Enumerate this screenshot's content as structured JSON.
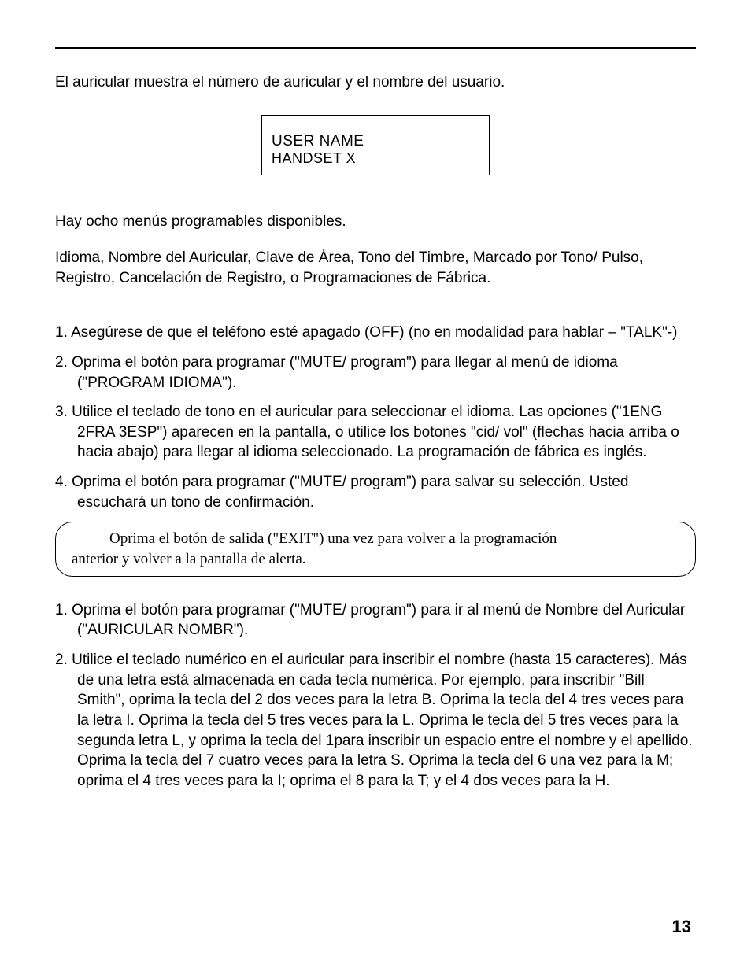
{
  "intro": "El auricular muestra el número de auricular y el nombre del usuario.",
  "display": {
    "line1": "USER NAME",
    "line2": "HANDSET  X"
  },
  "menu_intro": "Hay ocho menús programables disponibles.",
  "menu_list": "Idioma, Nombre del Auricular, Clave de Área, Tono del Timbre, Marcado por Tono/ Pulso, Registro, Cancelación de Registro, o Programaciones de Fábrica.",
  "steps1": [
    "1.   Asegúrese de que el teléfono esté apagado (OFF) (no en modalidad para hablar – \"TALK\"-)",
    "2. Oprima el botón para programar (\"MUTE/ program\") para llegar al menú de idioma (\"PROGRAM IDIOMA\").",
    "3.   Utilice el teclado de tono en el auricular para seleccionar el idioma. Las opciones (\"1ENG 2FRA 3ESP\") aparecen en la pantalla, o utilice los botones \"cid/ vol\" (flechas hacia arriba o hacia abajo) para llegar al idioma seleccionado. La programación de fábrica es inglés.",
    "4.   Oprima el botón para programar (\"MUTE/ program\") para salvar su selección. Usted escuchará un tono de confirmación."
  ],
  "note": {
    "first": "Oprima el botón de salida (\"EXIT\") una vez para volver a la programación",
    "second": "anterior y volver a la pantalla de alerta."
  },
  "steps2": [
    "1.   Oprima el botón para programar (\"MUTE/ program\") para ir al menú de Nombre del Auricular (\"AURICULAR NOMBR\").",
    "2.   Utilice el teclado numérico en el auricular para inscribir el nombre (hasta 15 caracteres). Más de una letra está almacenada en cada tecla numérica. Por ejemplo, para inscribir \"Bill Smith\", oprima la tecla del 2 dos veces para la letra B. Oprima la tecla del 4 tres veces para la letra I. Oprima la tecla del 5 tres veces para la L. Oprima le tecla del 5 tres veces para la segunda letra L, y oprima la tecla del 1para inscribir un espacio entre el nombre y el apellido. Oprima la tecla del 7 cuatro veces para la letra S. Oprima la tecla del 6 una vez para la M; oprima el 4 tres veces para la I; oprima el 8 para la T; y el 4 dos veces para la H."
  ],
  "page_number": "13",
  "colors": {
    "text": "#000000",
    "background": "#ffffff"
  }
}
